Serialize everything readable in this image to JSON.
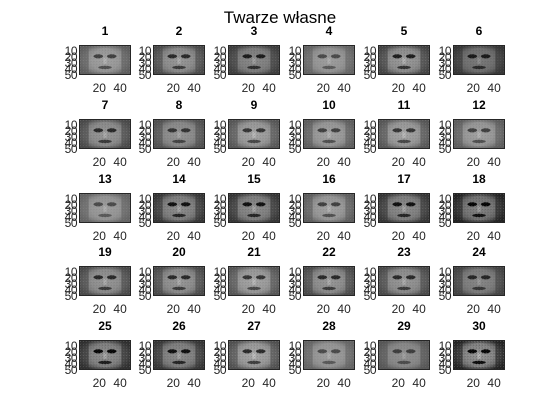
{
  "figure": {
    "title": "Twarze własne",
    "colormap": "gray",
    "axis_color": "#262626",
    "background": "#ffffff"
  },
  "panels": [
    {
      "title": "1",
      "shade": 0.55,
      "contrast": 0.35
    },
    {
      "title": "2",
      "shade": 0.5,
      "contrast": 0.4
    },
    {
      "title": "3",
      "shade": 0.45,
      "contrast": 0.4
    },
    {
      "title": "4",
      "shade": 0.55,
      "contrast": 0.3
    },
    {
      "title": "5",
      "shade": 0.5,
      "contrast": 0.45
    },
    {
      "title": "6",
      "shade": 0.4,
      "contrast": 0.35
    },
    {
      "title": "7",
      "shade": 0.5,
      "contrast": 0.4
    },
    {
      "title": "8",
      "shade": 0.5,
      "contrast": 0.35
    },
    {
      "title": "9",
      "shade": 0.55,
      "contrast": 0.4
    },
    {
      "title": "10",
      "shade": 0.55,
      "contrast": 0.35
    },
    {
      "title": "11",
      "shade": 0.55,
      "contrast": 0.4
    },
    {
      "title": "12",
      "shade": 0.55,
      "contrast": 0.35
    },
    {
      "title": "13",
      "shade": 0.55,
      "contrast": 0.3
    },
    {
      "title": "14",
      "shade": 0.45,
      "contrast": 0.45
    },
    {
      "title": "15",
      "shade": 0.45,
      "contrast": 0.45
    },
    {
      "title": "16",
      "shade": 0.55,
      "contrast": 0.35
    },
    {
      "title": "17",
      "shade": 0.45,
      "contrast": 0.45
    },
    {
      "title": "18",
      "shade": 0.4,
      "contrast": 0.5
    },
    {
      "title": "19",
      "shade": 0.5,
      "contrast": 0.4
    },
    {
      "title": "20",
      "shade": 0.5,
      "contrast": 0.4
    },
    {
      "title": "21",
      "shade": 0.55,
      "contrast": 0.4
    },
    {
      "title": "22",
      "shade": 0.5,
      "contrast": 0.4
    },
    {
      "title": "23",
      "shade": 0.5,
      "contrast": 0.4
    },
    {
      "title": "24",
      "shade": 0.45,
      "contrast": 0.35
    },
    {
      "title": "25",
      "shade": 0.45,
      "contrast": 0.5
    },
    {
      "title": "26",
      "shade": 0.45,
      "contrast": 0.45
    },
    {
      "title": "27",
      "shade": 0.55,
      "contrast": 0.45
    },
    {
      "title": "28",
      "shade": 0.55,
      "contrast": 0.3
    },
    {
      "title": "29",
      "shade": 0.5,
      "contrast": 0.3
    },
    {
      "title": "30",
      "shade": 0.45,
      "contrast": 0.6
    }
  ],
  "axes": {
    "yticks": [
      "10",
      "20",
      "30",
      "40",
      "50"
    ],
    "ytick_values": [
      10,
      20,
      30,
      40,
      50
    ],
    "ylim": [
      0.5,
      50.5
    ],
    "xticks": [
      "20",
      "40"
    ],
    "xtick_values": [
      20,
      40
    ],
    "xlim": [
      0.5,
      50.5
    ],
    "show_xticks_rows": [
      4
    ]
  }
}
